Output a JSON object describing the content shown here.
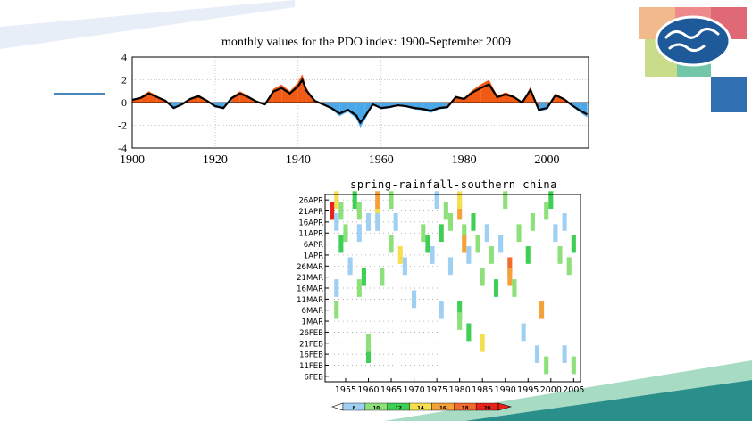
{
  "slide": {
    "colors": {
      "accent_light": "#e4ecf7",
      "accent_green": "#73c7a8",
      "accent_teal": "#2a8f8a",
      "accent_blue": "#2f6fb2"
    }
  },
  "logo": {
    "icon": "wave-cloud-emblem-icon",
    "tiles": [
      "#f2b98c",
      "#ed8a8c",
      "#df6a76",
      "#c9dc8a",
      "#73c7a8",
      "#2f6fb2"
    ]
  },
  "chart_data": [
    {
      "type": "area",
      "title": "monthly values for the PDO index: 1900-September 2009",
      "xlabel": "",
      "ylabel": "",
      "xlim": [
        1900,
        2010
      ],
      "ylim": [
        -4,
        4
      ],
      "x_ticks": [
        1900,
        1920,
        1940,
        1960,
        1980,
        2000
      ],
      "y_ticks": [
        4,
        2,
        0,
        -2,
        -4
      ],
      "grid": true,
      "positive_color": "#f05a14",
      "negative_color": "#4aa8e8",
      "smoothed_color": "#000000",
      "series": [
        {
          "x": [
            1900,
            1902,
            1904,
            1906,
            1908,
            1910,
            1912,
            1914,
            1916,
            1918,
            1920,
            1922,
            1924,
            1926,
            1928,
            1930,
            1932,
            1934,
            1936,
            1938,
            1940,
            1941,
            1942,
            1944,
            1946,
            1948,
            1950,
            1952,
            1954,
            1955,
            1956,
            1958,
            1960,
            1962,
            1964,
            1966,
            1968,
            1970,
            1972,
            1974,
            1976,
            1978,
            1980,
            1982,
            1984,
            1986,
            1988,
            1990,
            1992,
            1994,
            1996,
            1998,
            2000,
            2002,
            2004,
            2006,
            2008,
            2009.7
          ],
          "values": [
            0.3,
            0.5,
            1.0,
            0.6,
            0.2,
            -0.6,
            -0.2,
            0.4,
            0.7,
            0.2,
            -0.4,
            -0.6,
            0.5,
            1.0,
            0.6,
            0.1,
            -0.2,
            1.2,
            1.6,
            1.0,
            1.8,
            2.5,
            1.3,
            0.2,
            -0.2,
            -0.6,
            -1.2,
            -0.8,
            -1.4,
            -2.2,
            -1.6,
            -0.2,
            -0.6,
            -0.5,
            -0.3,
            -0.4,
            -0.6,
            -0.7,
            -0.9,
            -0.6,
            -0.5,
            0.6,
            0.4,
            1.1,
            1.6,
            2.0,
            0.6,
            0.9,
            0.6,
            0.0,
            1.4,
            -0.8,
            -0.6,
            0.8,
            0.4,
            -0.3,
            -0.9,
            -1.3
          ]
        }
      ]
    },
    {
      "type": "heatmap",
      "title": "spring-rainfall-southern china",
      "x_ticks": [
        "1955",
        "1960",
        "1965",
        "1970",
        "1975",
        "1980",
        "1985",
        "1990",
        "1995",
        "2000",
        "2005"
      ],
      "y_ticks": [
        "26APR",
        "21APR",
        "16APR",
        "11APR",
        "6APR",
        "1APR",
        "26MAR",
        "21MAR",
        "16MAR",
        "11MAR",
        "6MAR",
        "1MAR",
        "26FEB",
        "21FEB",
        "16FEB",
        "11FEB",
        "6FEB"
      ],
      "colorbar": {
        "levels": [
          "8",
          "10",
          "12",
          "14",
          "16",
          "18",
          "20"
        ],
        "colors": [
          "#9fcff3",
          "#8ee07a",
          "#3fcf55",
          "#f6df4e",
          "#f5a13a",
          "#f36a2d",
          "#e8231c"
        ]
      },
      "cells": [
        {
          "x": 1953,
          "y": "26APR",
          "v": 14
        },
        {
          "x": 1954,
          "y": "21APR",
          "v": 10
        },
        {
          "x": 1952,
          "y": "21APR",
          "v": 20
        },
        {
          "x": 1953,
          "y": "16APR",
          "v": 8
        },
        {
          "x": 1955,
          "y": "11APR",
          "v": 10
        },
        {
          "x": 1954,
          "y": "6APR",
          "v": 12
        },
        {
          "x": 1956,
          "y": "26MAR",
          "v": 8
        },
        {
          "x": 1953,
          "y": "16MAR",
          "v": 8
        },
        {
          "x": 1953,
          "y": "6MAR",
          "v": 10
        },
        {
          "x": 1957,
          "y": "26APR",
          "v": 12
        },
        {
          "x": 1958,
          "y": "21APR",
          "v": 10
        },
        {
          "x": 1960,
          "y": "16APR",
          "v": 8
        },
        {
          "x": 1962,
          "y": "21APR",
          "v": 14
        },
        {
          "x": 1962,
          "y": "26APR",
          "v": 16
        },
        {
          "x": 1962,
          "y": "16APR",
          "v": 8
        },
        {
          "x": 1958,
          "y": "11APR",
          "v": 8
        },
        {
          "x": 1959,
          "y": "21MAR",
          "v": 12
        },
        {
          "x": 1958,
          "y": "16MAR",
          "v": 10
        },
        {
          "x": 1960,
          "y": "16FEB",
          "v": 12
        },
        {
          "x": 1960,
          "y": "21FEB",
          "v": 10
        },
        {
          "x": 1965,
          "y": "26APR",
          "v": 10
        },
        {
          "x": 1966,
          "y": "16APR",
          "v": 8
        },
        {
          "x": 1965,
          "y": "6APR",
          "v": 10
        },
        {
          "x": 1967,
          "y": "1APR",
          "v": 14
        },
        {
          "x": 1968,
          "y": "26MAR",
          "v": 8
        },
        {
          "x": 1963,
          "y": "21MAR",
          "v": 10
        },
        {
          "x": 1970,
          "y": "11MAR",
          "v": 8
        },
        {
          "x": 1972,
          "y": "11APR",
          "v": 10
        },
        {
          "x": 1973,
          "y": "6APR",
          "v": 12
        },
        {
          "x": 1974,
          "y": "1APR",
          "v": 8
        },
        {
          "x": 1975,
          "y": "26APR",
          "v": 8
        },
        {
          "x": 1977,
          "y": "21APR",
          "v": 10
        },
        {
          "x": 1976,
          "y": "11APR",
          "v": 12
        },
        {
          "x": 1978,
          "y": "16APR",
          "v": 10
        },
        {
          "x": 1976,
          "y": "6MAR",
          "v": 8
        },
        {
          "x": 1978,
          "y": "26MAR",
          "v": 8
        },
        {
          "x": 1980,
          "y": "21APR",
          "v": 16
        },
        {
          "x": 1980,
          "y": "26APR",
          "v": 14
        },
        {
          "x": 1981,
          "y": "11APR",
          "v": 10
        },
        {
          "x": 1981,
          "y": "6APR",
          "v": 16
        },
        {
          "x": 1982,
          "y": "1APR",
          "v": 8
        },
        {
          "x": 1980,
          "y": "6MAR",
          "v": 12
        },
        {
          "x": 1980,
          "y": "1MAR",
          "v": 10
        },
        {
          "x": 1982,
          "y": "26FEB",
          "v": 12
        },
        {
          "x": 1983,
          "y": "16APR",
          "v": 12
        },
        {
          "x": 1984,
          "y": "6APR",
          "v": 10
        },
        {
          "x": 1985,
          "y": "21FEB",
          "v": 14
        },
        {
          "x": 1985,
          "y": "21MAR",
          "v": 10
        },
        {
          "x": 1986,
          "y": "11APR",
          "v": 8
        },
        {
          "x": 1987,
          "y": "1APR",
          "v": 10
        },
        {
          "x": 1988,
          "y": "16MAR",
          "v": 12
        },
        {
          "x": 1989,
          "y": "6APR",
          "v": 8
        },
        {
          "x": 1990,
          "y": "26APR",
          "v": 10
        },
        {
          "x": 1991,
          "y": "26MAR",
          "v": 18
        },
        {
          "x": 1991,
          "y": "21MAR",
          "v": 16
        },
        {
          "x": 1992,
          "y": "16MAR",
          "v": 10
        },
        {
          "x": 1993,
          "y": "11APR",
          "v": 10
        },
        {
          "x": 1994,
          "y": "26FEB",
          "v": 8
        },
        {
          "x": 1995,
          "y": "1APR",
          "v": 12
        },
        {
          "x": 1996,
          "y": "16APR",
          "v": 10
        },
        {
          "x": 1997,
          "y": "16FEB",
          "v": 8
        },
        {
          "x": 1998,
          "y": "6MAR",
          "v": 16
        },
        {
          "x": 1999,
          "y": "21APR",
          "v": 10
        },
        {
          "x": 2000,
          "y": "26APR",
          "v": 12
        },
        {
          "x": 2001,
          "y": "11APR",
          "v": 8
        },
        {
          "x": 2002,
          "y": "1APR",
          "v": 10
        },
        {
          "x": 2003,
          "y": "16APR",
          "v": 8
        },
        {
          "x": 2004,
          "y": "26MAR",
          "v": 10
        },
        {
          "x": 2005,
          "y": "6APR",
          "v": 12
        },
        {
          "x": 2005,
          "y": "11FEB",
          "v": 10
        },
        {
          "x": 2003,
          "y": "16FEB",
          "v": 8
        },
        {
          "x": 1999,
          "y": "11FEB",
          "v": 10
        }
      ]
    }
  ]
}
